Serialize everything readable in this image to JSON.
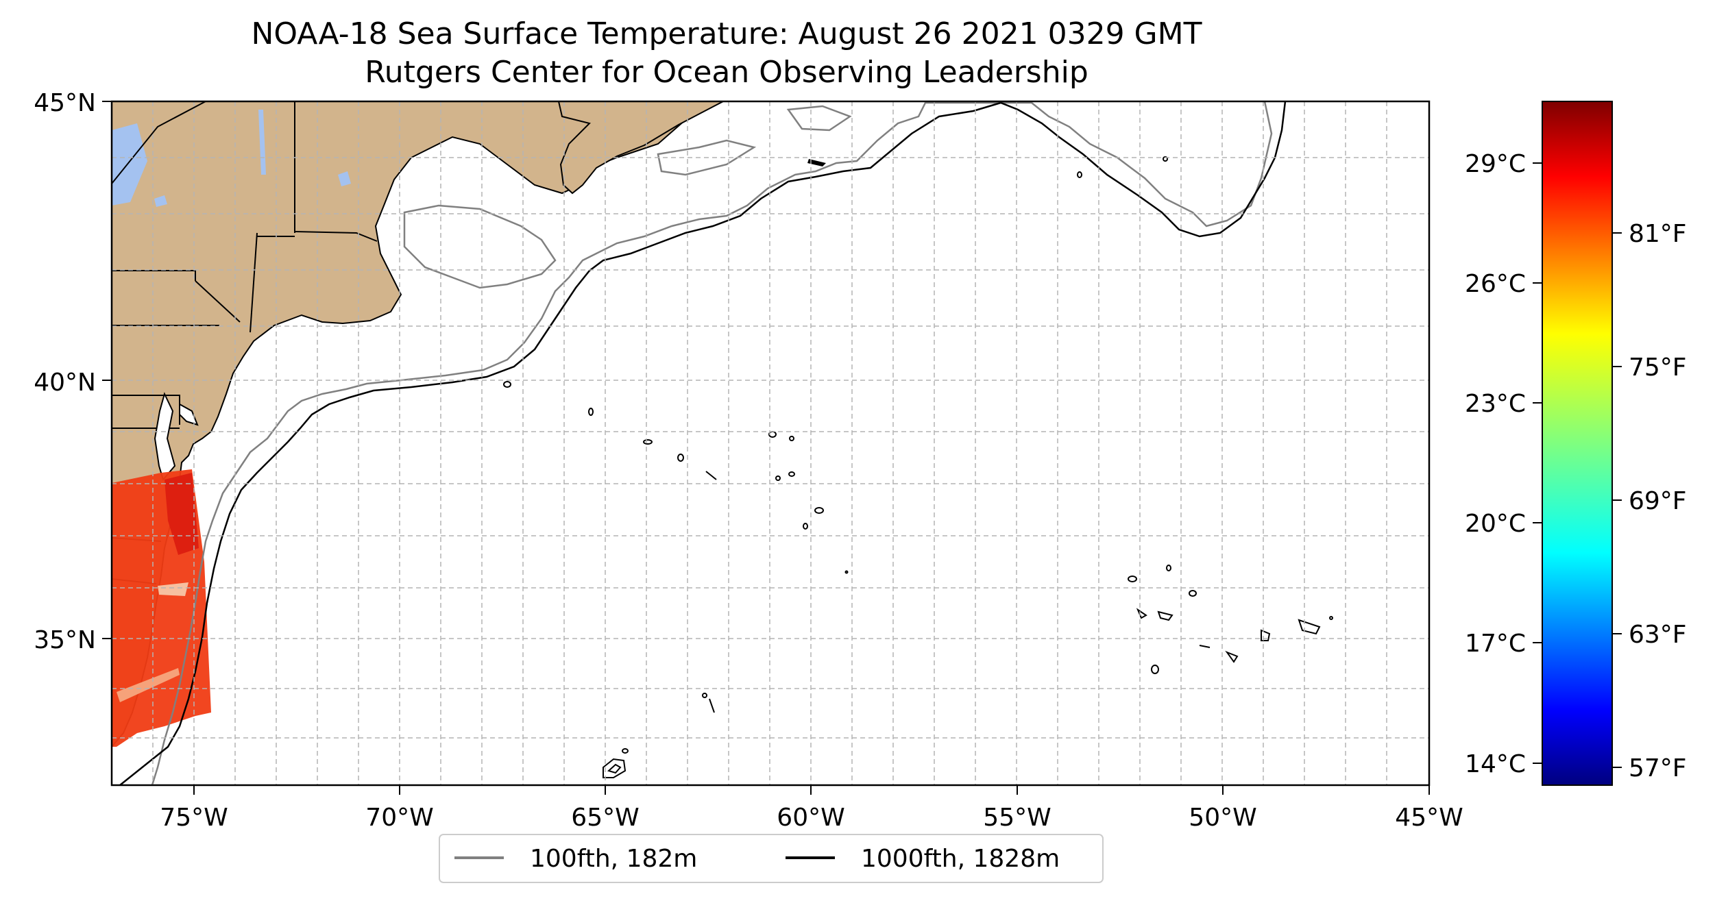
{
  "title": "NOAA-18 Sea Surface Temperature: August 26 2021 0329 GMT",
  "subtitle": "Rutgers Center for Ocean Observing Leadership",
  "map": {
    "lon_ticks": [
      "75°W",
      "70°W",
      "65°W",
      "60°W",
      "55°W",
      "50°W",
      "45°W"
    ],
    "lat_ticks": [
      "45°N",
      "40°N",
      "35°N"
    ],
    "gridlines": true,
    "land_color": "#d2b48c",
    "water_body_color": "#a4c2f0",
    "ocean_color": "#ffffff"
  },
  "legend": {
    "placement": "bottom-center",
    "items": [
      {
        "label": "100fth, 182m",
        "color": "#808080"
      },
      {
        "label": "1000fth, 1828m",
        "color": "#000000"
      }
    ]
  },
  "colorbar": {
    "colormap": "jet",
    "celsius_ticks": [
      "29°C",
      "26°C",
      "23°C",
      "20°C",
      "17°C",
      "14°C"
    ],
    "fahrenheit_ticks": [
      "81°F",
      "75°F",
      "69°F",
      "63°F",
      "57°F"
    ]
  }
}
